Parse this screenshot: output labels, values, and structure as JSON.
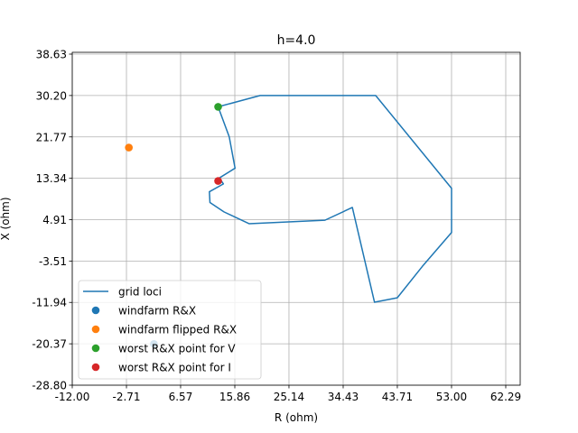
{
  "chart_data": {
    "type": "line",
    "title": "h=4.0",
    "xlabel": "R (ohm)",
    "ylabel": "X (ohm)",
    "xlim": [
      -12.0,
      63.0
    ],
    "ylim": [
      -28.8,
      38.63
    ],
    "x_ticks": [
      "-12.00",
      "-2.71",
      "6.57",
      "15.86",
      "25.14",
      "34.43",
      "43.71",
      "53.00",
      "62.29"
    ],
    "y_ticks": [
      "-28.80",
      "-20.37",
      "-11.94",
      "-3.51",
      "4.91",
      "13.34",
      "21.77",
      "30.20",
      "38.63"
    ],
    "grid": true,
    "legend_position": "lower-left",
    "series": [
      {
        "name": "grid loci",
        "kind": "line",
        "color": "#1f77b4",
        "x": [
          13.0,
          20.2,
          40.0,
          53.0,
          53.0,
          48.0,
          43.7,
          39.8,
          36.0,
          31.3,
          18.3,
          14.0,
          11.6,
          11.5,
          13.9,
          13.2,
          15.9,
          14.9,
          13.0
        ],
        "y": [
          27.9,
          30.2,
          30.2,
          11.3,
          2.3,
          -4.6,
          -11.0,
          -11.9,
          7.4,
          4.8,
          4.1,
          6.5,
          8.4,
          10.6,
          12.2,
          13.4,
          15.4,
          21.8,
          27.9
        ]
      },
      {
        "name": "windfarm R&X",
        "kind": "scatter",
        "color": "#1f77b4",
        "x": [
          2.0
        ],
        "y": [
          -20.4
        ]
      },
      {
        "name": "windfarm flipped R&X",
        "kind": "scatter",
        "color": "#ff7f0e",
        "x": [
          -2.3
        ],
        "y": [
          19.6
        ]
      },
      {
        "name": "worst R&X point for V",
        "kind": "scatter",
        "color": "#2ca02c",
        "x": [
          13.0
        ],
        "y": [
          27.9
        ]
      },
      {
        "name": "worst R&X point for I",
        "kind": "scatter",
        "color": "#d62728",
        "x": [
          13.0
        ],
        "y": [
          12.8
        ]
      }
    ]
  }
}
